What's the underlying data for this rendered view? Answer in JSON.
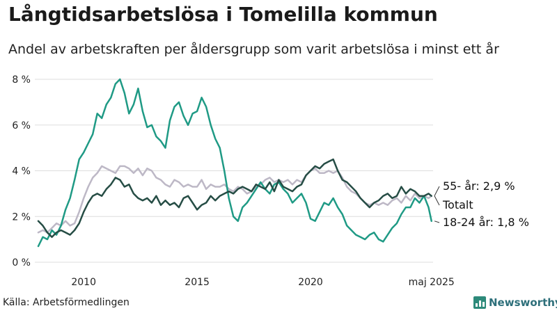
{
  "title": "Långtidsarbetslösa i Tomelilla kommun",
  "subtitle": "Andel av arbetskraften per åldersgrupp som varit arbetslösa i minst ett år",
  "source": "Källa: Arbetsförmedlingen",
  "brand": "Newsworthy",
  "colors": {
    "young": "#1f9a85",
    "total": "#264d45",
    "old": "#bdb8c6",
    "grid": "#dddddd",
    "brand": "#2d8a7a"
  },
  "icons": {
    "logo": "bar-chart-icon"
  },
  "chart_data": {
    "type": "line",
    "title": "Långtidsarbetslösa i Tomelilla kommun",
    "xlabel": "",
    "ylabel": "",
    "ylim": [
      0,
      8
    ],
    "xlim": [
      2008.0,
      2025.4
    ],
    "grid": "horizontal",
    "yticks": [
      0,
      2,
      4,
      6,
      8
    ],
    "ytick_labels": [
      "0 %",
      "2 %",
      "4 %",
      "6 %",
      "8 %"
    ],
    "xticks": [
      2010,
      2015,
      2020,
      2025.33
    ],
    "xtick_labels": [
      "2010",
      "2015",
      "2020",
      "maj 2025"
    ],
    "end_labels": [
      "55- år: 2,9 %",
      "Totalt",
      "18-24 år: 1,8 %"
    ],
    "series": [
      {
        "name": "18-24 år",
        "key": "young",
        "x": [
          2008.0,
          2008.2,
          2008.4,
          2008.6,
          2008.8,
          2009.0,
          2009.2,
          2009.4,
          2009.6,
          2009.8,
          2010.0,
          2010.2,
          2010.4,
          2010.6,
          2010.8,
          2011.0,
          2011.2,
          2011.4,
          2011.6,
          2011.8,
          2012.0,
          2012.2,
          2012.4,
          2012.6,
          2012.8,
          2013.0,
          2013.2,
          2013.4,
          2013.6,
          2013.8,
          2014.0,
          2014.2,
          2014.4,
          2014.6,
          2014.8,
          2015.0,
          2015.2,
          2015.4,
          2015.6,
          2015.8,
          2016.0,
          2016.2,
          2016.4,
          2016.6,
          2016.8,
          2017.0,
          2017.2,
          2017.4,
          2017.6,
          2017.8,
          2018.0,
          2018.2,
          2018.4,
          2018.6,
          2018.8,
          2019.0,
          2019.2,
          2019.4,
          2019.6,
          2019.8,
          2020.0,
          2020.2,
          2020.4,
          2020.6,
          2020.8,
          2021.0,
          2021.2,
          2021.4,
          2021.6,
          2021.8,
          2022.0,
          2022.2,
          2022.4,
          2022.6,
          2022.8,
          2023.0,
          2023.2,
          2023.4,
          2023.6,
          2023.8,
          2024.0,
          2024.2,
          2024.4,
          2024.6,
          2024.8,
          2025.0,
          2025.2,
          2025.33
        ],
        "values": [
          0.7,
          1.1,
          1.0,
          1.4,
          1.2,
          1.6,
          2.3,
          2.8,
          3.6,
          4.5,
          4.8,
          5.2,
          5.6,
          6.5,
          6.3,
          6.9,
          7.2,
          7.8,
          8.0,
          7.4,
          6.5,
          6.9,
          7.6,
          6.6,
          5.9,
          6.0,
          5.5,
          5.3,
          5.0,
          6.2,
          6.8,
          7.0,
          6.4,
          6.0,
          6.5,
          6.6,
          7.2,
          6.8,
          6.0,
          5.4,
          5.0,
          4.0,
          2.8,
          2.0,
          1.8,
          2.4,
          2.6,
          2.9,
          3.2,
          3.5,
          3.2,
          3.0,
          3.4,
          3.5,
          3.2,
          3.0,
          2.6,
          2.8,
          3.0,
          2.6,
          1.9,
          1.8,
          2.2,
          2.6,
          2.5,
          2.8,
          2.4,
          2.1,
          1.6,
          1.4,
          1.2,
          1.1,
          1.0,
          1.2,
          1.3,
          1.0,
          0.9,
          1.2,
          1.5,
          1.7,
          2.1,
          2.4,
          2.4,
          2.8,
          2.6,
          2.9,
          2.4,
          1.8
        ]
      },
      {
        "name": "Totalt",
        "key": "total",
        "x": [
          2008.0,
          2008.2,
          2008.4,
          2008.6,
          2008.8,
          2009.0,
          2009.2,
          2009.4,
          2009.6,
          2009.8,
          2010.0,
          2010.2,
          2010.4,
          2010.6,
          2010.8,
          2011.0,
          2011.2,
          2011.4,
          2011.6,
          2011.8,
          2012.0,
          2012.2,
          2012.4,
          2012.6,
          2012.8,
          2013.0,
          2013.2,
          2013.4,
          2013.6,
          2013.8,
          2014.0,
          2014.2,
          2014.4,
          2014.6,
          2014.8,
          2015.0,
          2015.2,
          2015.4,
          2015.6,
          2015.8,
          2016.0,
          2016.2,
          2016.4,
          2016.6,
          2016.8,
          2017.0,
          2017.2,
          2017.4,
          2017.6,
          2017.8,
          2018.0,
          2018.2,
          2018.4,
          2018.6,
          2018.8,
          2019.0,
          2019.2,
          2019.4,
          2019.6,
          2019.8,
          2020.0,
          2020.2,
          2020.4,
          2020.6,
          2020.8,
          2021.0,
          2021.2,
          2021.4,
          2021.6,
          2021.8,
          2022.0,
          2022.2,
          2022.4,
          2022.6,
          2022.8,
          2023.0,
          2023.2,
          2023.4,
          2023.6,
          2023.8,
          2024.0,
          2024.2,
          2024.4,
          2024.6,
          2024.8,
          2025.0,
          2025.2,
          2025.33
        ],
        "values": [
          1.8,
          1.6,
          1.3,
          1.1,
          1.3,
          1.4,
          1.3,
          1.2,
          1.4,
          1.7,
          2.2,
          2.6,
          2.9,
          3.0,
          2.9,
          3.2,
          3.4,
          3.7,
          3.6,
          3.3,
          3.4,
          3.0,
          2.8,
          2.7,
          2.8,
          2.6,
          2.9,
          2.5,
          2.7,
          2.5,
          2.6,
          2.4,
          2.8,
          2.9,
          2.6,
          2.3,
          2.5,
          2.6,
          2.9,
          2.7,
          2.9,
          3.0,
          3.1,
          3.0,
          3.2,
          3.3,
          3.2,
          3.1,
          3.4,
          3.3,
          3.2,
          3.5,
          3.1,
          3.6,
          3.3,
          3.2,
          3.1,
          3.3,
          3.4,
          3.8,
          4.0,
          4.2,
          4.1,
          4.3,
          4.4,
          4.5,
          4.0,
          3.6,
          3.5,
          3.3,
          3.1,
          2.8,
          2.6,
          2.4,
          2.6,
          2.7,
          2.9,
          3.0,
          2.8,
          2.9,
          3.3,
          3.0,
          3.2,
          3.1,
          2.9,
          2.9,
          3.0,
          2.9
        ]
      },
      {
        "name": "55- år",
        "key": "old",
        "x": [
          2008.0,
          2008.2,
          2008.4,
          2008.6,
          2008.8,
          2009.0,
          2009.2,
          2009.4,
          2009.6,
          2009.8,
          2010.0,
          2010.2,
          2010.4,
          2010.6,
          2010.8,
          2011.0,
          2011.2,
          2011.4,
          2011.6,
          2011.8,
          2012.0,
          2012.2,
          2012.4,
          2012.6,
          2012.8,
          2013.0,
          2013.2,
          2013.4,
          2013.6,
          2013.8,
          2014.0,
          2014.2,
          2014.4,
          2014.6,
          2014.8,
          2015.0,
          2015.2,
          2015.4,
          2015.6,
          2015.8,
          2016.0,
          2016.2,
          2016.4,
          2016.6,
          2016.8,
          2017.0,
          2017.2,
          2017.4,
          2017.6,
          2017.8,
          2018.0,
          2018.2,
          2018.4,
          2018.6,
          2018.8,
          2019.0,
          2019.2,
          2019.4,
          2019.6,
          2019.8,
          2020.0,
          2020.2,
          2020.4,
          2020.6,
          2020.8,
          2021.0,
          2021.2,
          2021.4,
          2021.6,
          2021.8,
          2022.0,
          2022.2,
          2022.4,
          2022.6,
          2022.8,
          2023.0,
          2023.2,
          2023.4,
          2023.6,
          2023.8,
          2024.0,
          2024.2,
          2024.4,
          2024.6,
          2024.8,
          2025.0,
          2025.2,
          2025.33
        ],
        "values": [
          1.3,
          1.4,
          1.3,
          1.5,
          1.7,
          1.6,
          1.8,
          1.6,
          1.7,
          2.2,
          2.8,
          3.3,
          3.7,
          3.9,
          4.2,
          4.1,
          4.0,
          3.9,
          4.2,
          4.2,
          4.1,
          3.9,
          4.1,
          3.8,
          4.1,
          4.0,
          3.7,
          3.6,
          3.4,
          3.3,
          3.6,
          3.5,
          3.3,
          3.4,
          3.3,
          3.3,
          3.6,
          3.2,
          3.4,
          3.3,
          3.3,
          3.4,
          3.2,
          3.1,
          3.3,
          3.2,
          3.0,
          3.1,
          3.3,
          3.4,
          3.6,
          3.7,
          3.5,
          3.6,
          3.5,
          3.6,
          3.4,
          3.6,
          3.5,
          3.8,
          4.0,
          4.1,
          3.9,
          3.9,
          4.0,
          3.9,
          4.0,
          3.7,
          3.3,
          3.1,
          3.0,
          2.8,
          2.6,
          2.5,
          2.6,
          2.5,
          2.6,
          2.5,
          2.7,
          2.8,
          2.6,
          2.9,
          2.7,
          3.0,
          2.8,
          2.9,
          2.8,
          2.9
        ]
      }
    ]
  }
}
